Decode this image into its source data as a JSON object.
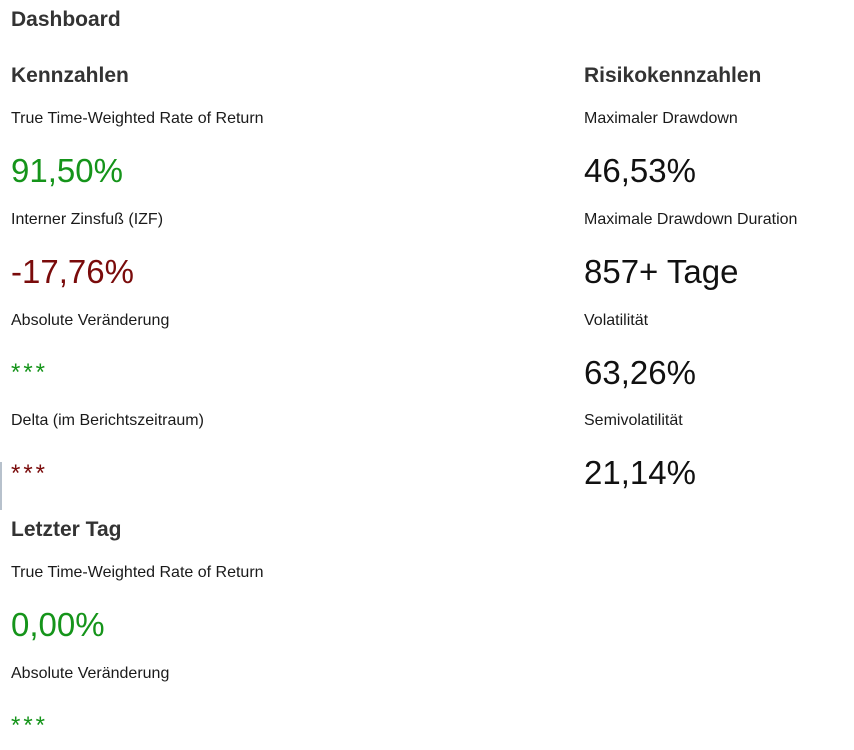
{
  "dashboard": {
    "title": "Dashboard"
  },
  "kennzahlen": {
    "heading": "Kennzahlen",
    "items": [
      {
        "label": "True Time-Weighted Rate of Return",
        "value": "91,50%",
        "tone": "positive"
      },
      {
        "label": "Interner Zinsfuß (IZF)",
        "value": "-17,76%",
        "tone": "negative"
      },
      {
        "label": "Absolute Veränderung",
        "value": "***",
        "tone": "positive"
      },
      {
        "label": "Delta (im Berichtszeitraum)",
        "value": "***",
        "tone": "negative"
      }
    ]
  },
  "letzter_tag": {
    "heading": "Letzter Tag",
    "items": [
      {
        "label": "True Time-Weighted Rate of Return",
        "value": "0,00%",
        "tone": "positive"
      },
      {
        "label": "Absolute Veränderung",
        "value": "***",
        "tone": "positive"
      }
    ]
  },
  "risikokennzahlen": {
    "heading": "Risikokennzahlen",
    "items": [
      {
        "label": "Maximaler Drawdown",
        "value": "46,53%"
      },
      {
        "label": "Maximale Drawdown Duration",
        "value": "857+ Tage"
      },
      {
        "label": "Volatilität",
        "value": "63,26%"
      },
      {
        "label": "Semivolatilität",
        "value": "21,14%"
      }
    ]
  },
  "colors": {
    "positive": "#15941a",
    "negative": "#7a0b0b",
    "neutral": "#111111",
    "heading": "#333333"
  }
}
